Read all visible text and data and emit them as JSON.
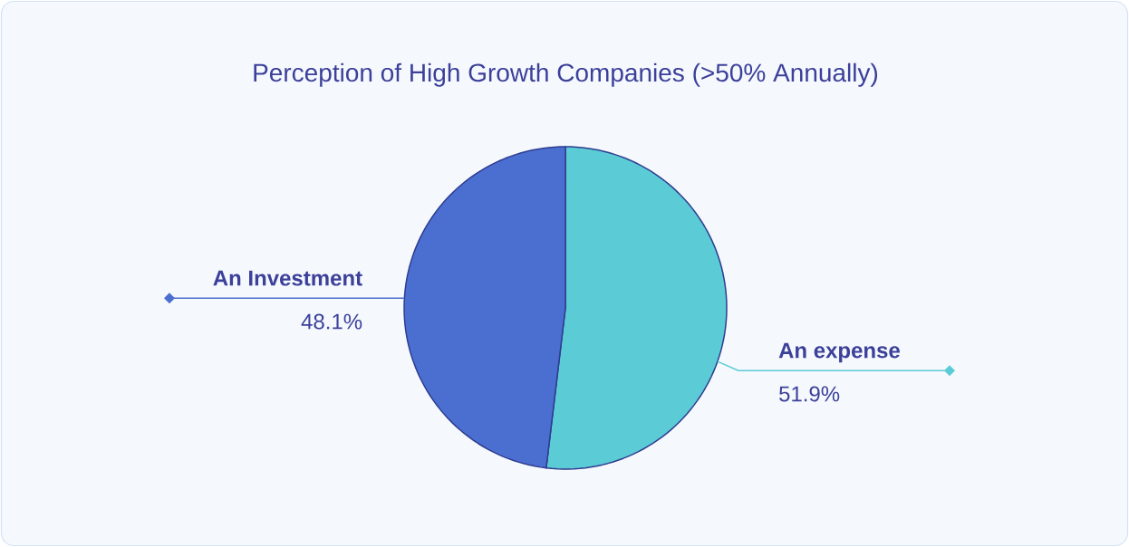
{
  "chart_data": {
    "type": "pie",
    "title": "Perception of High Growth Companies (>50% Annually)",
    "categories": [
      "An expense",
      "An Investment"
    ],
    "values": [
      51.9,
      48.1
    ],
    "value_labels": [
      "51.9%",
      "48.1%"
    ],
    "colors": [
      "#5bcbd6",
      "#4a6fd1"
    ]
  }
}
